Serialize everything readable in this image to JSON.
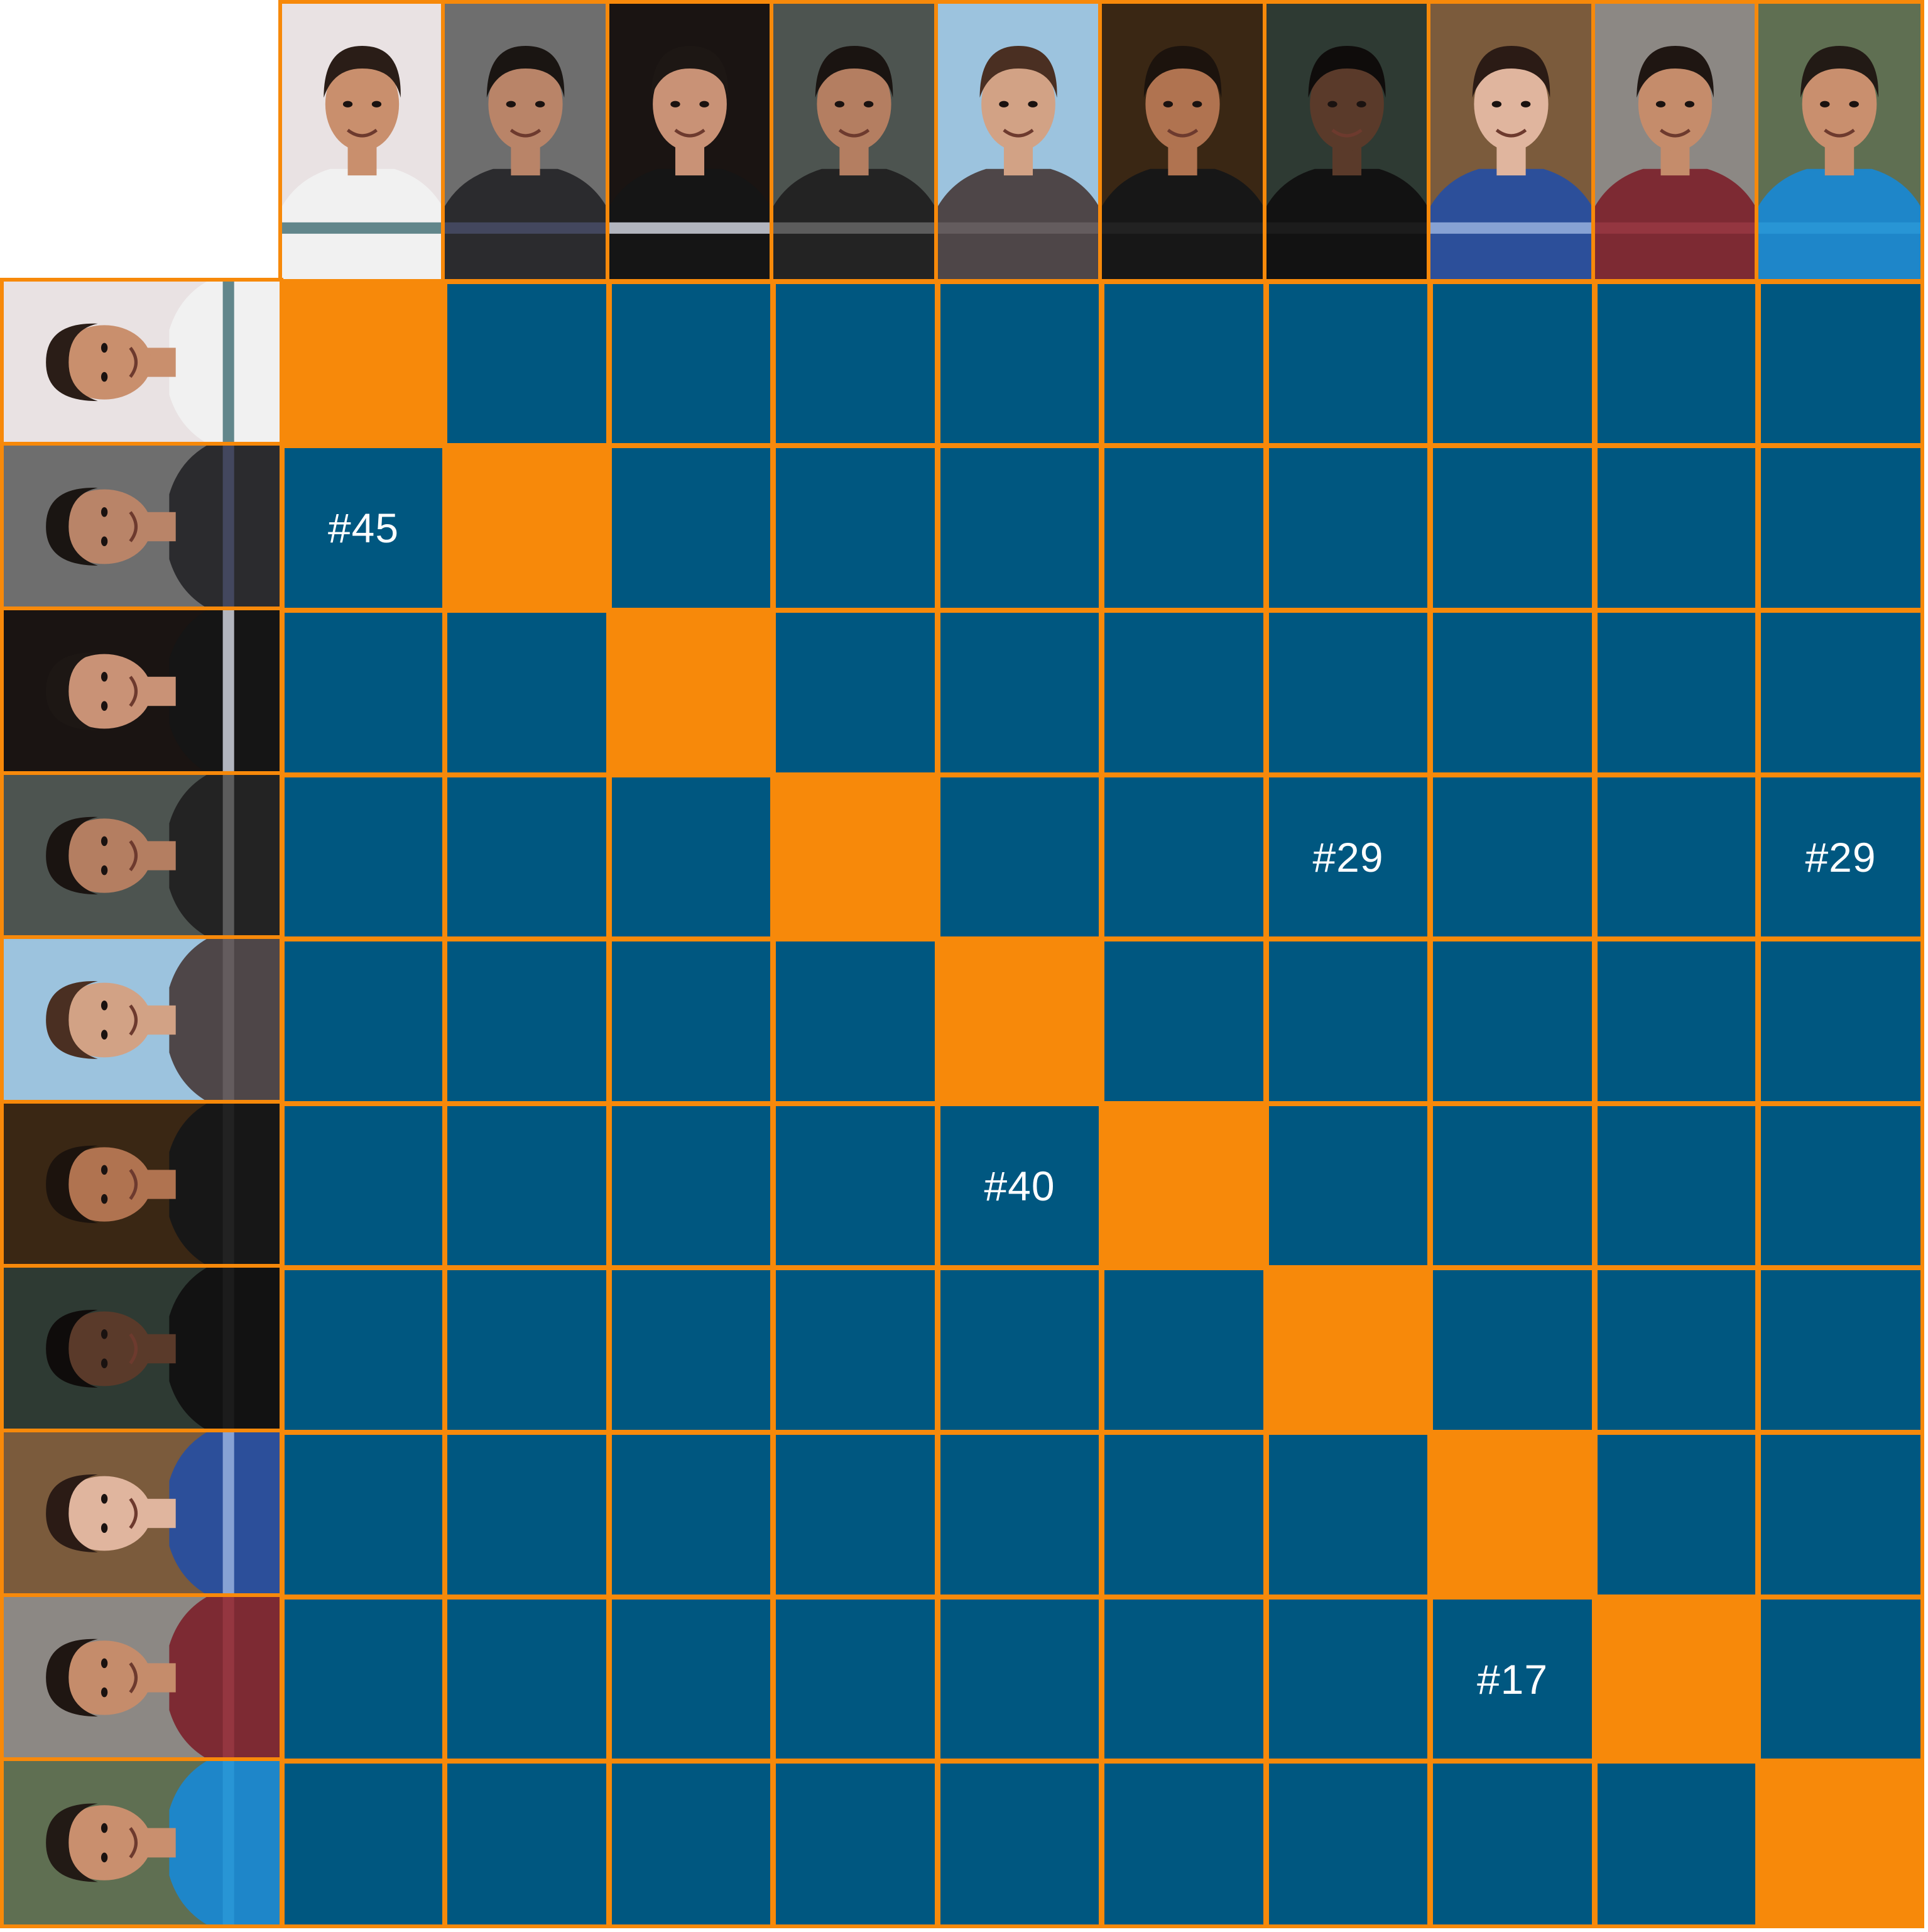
{
  "colors": {
    "accent": "#f7890a",
    "cell": "#005780",
    "label": "#ffffff"
  },
  "people": [
    {
      "icon": "person-photo-icon",
      "bg": "#e9e2e3",
      "skin": "#c98f6d",
      "hair": "#2a1d17",
      "shirt": "#f1f1f1",
      "stripe": "#3e6b72"
    },
    {
      "icon": "person-photo-icon",
      "bg": "#6e6e6e",
      "skin": "#b98468",
      "hair": "#1a1512",
      "shirt": "#2b2b2e",
      "stripe": "#4a4f6a"
    },
    {
      "icon": "person-photo-icon",
      "bg": "#1a1412",
      "skin": "#c99276",
      "hair": "#1d1714",
      "shirt": "#151515",
      "stripe": "#d9dde8"
    },
    {
      "icon": "person-photo-icon",
      "bg": "#4d5450",
      "skin": "#b47e61",
      "hair": "#1a1411",
      "shirt": "#232323",
      "stripe": "#6a6a6a"
    },
    {
      "icon": "person-photo-icon",
      "bg": "#9cc3de",
      "skin": "#d2a285",
      "hair": "#4a2f22",
      "shirt": "#4e4648",
      "stripe": "#6a6164"
    },
    {
      "icon": "person-photo-icon",
      "bg": "#3a2714",
      "skin": "#b07350",
      "hair": "#1c130d",
      "shirt": "#171717",
      "stripe": "#262626"
    },
    {
      "icon": "person-photo-icon",
      "bg": "#2e3a33",
      "skin": "#5a3a2a",
      "hair": "#0f0c0b",
      "shirt": "#121212",
      "stripe": "#1f1f1f"
    },
    {
      "icon": "person-photo-icon",
      "bg": "#7b5b3c",
      "skin": "#e0b59e",
      "hair": "#2b1b15",
      "shirt": "#2c4f9a",
      "stripe": "#9fb6e2"
    },
    {
      "icon": "person-photo-icon",
      "bg": "#8c8884",
      "skin": "#c58c6b",
      "hair": "#1f1612",
      "shirt": "#7d2a33",
      "stripe": "#9a3a43"
    },
    {
      "icon": "person-photo-icon",
      "bg": "#5f6f52",
      "skin": "#c98f6e",
      "hair": "#221a15",
      "shirt": "#1e86c9",
      "stripe": "#2b98d8"
    }
  ],
  "labels": [
    {
      "row": 1,
      "col": 0,
      "text": "#45"
    },
    {
      "row": 3,
      "col": 6,
      "text": "#29"
    },
    {
      "row": 3,
      "col": 9,
      "text": "#29"
    },
    {
      "row": 5,
      "col": 4,
      "text": "#40"
    },
    {
      "row": 8,
      "col": 7,
      "text": "#17"
    }
  ]
}
